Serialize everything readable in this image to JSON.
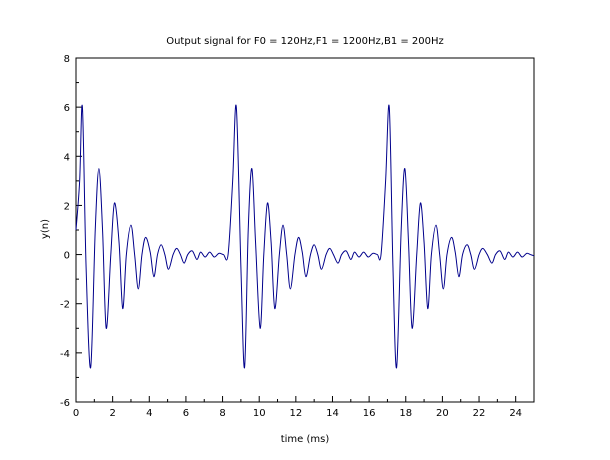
{
  "chart_data": {
    "type": "line",
    "title": "Output signal for F0 = 120Hz,F1 = 1200Hz,B1 = 200Hz",
    "xlabel": "time (ms)",
    "ylabel": "y(n)",
    "xlim": [
      0,
      25
    ],
    "ylim": [
      -6,
      8
    ],
    "xticks": [
      "0",
      "2",
      "4",
      "6",
      "8",
      "10",
      "12",
      "14",
      "16",
      "18",
      "20",
      "22",
      "24"
    ],
    "yticks": [
      "-6",
      "-4",
      "-2",
      "0",
      "2",
      "4",
      "6",
      "8"
    ],
    "grid": false,
    "colors": {
      "line": "#00008b",
      "axes": "#000000",
      "background": "#ffffff"
    },
    "series": [
      {
        "x": [
          0,
          0.2,
          0.35,
          0.55,
          0.8,
          1.05,
          1.25,
          1.45,
          1.65,
          1.9,
          2.1,
          2.35,
          2.55,
          2.75,
          3.0,
          3.2,
          3.4,
          3.6,
          3.8,
          4.05,
          4.25,
          4.45,
          4.65,
          4.85,
          5.05,
          5.3,
          5.5,
          5.7,
          5.9,
          6.1,
          6.35,
          6.6,
          6.8,
          7.05,
          7.3,
          7.55,
          7.8,
          8.05,
          8.3,
          8.55,
          8.75,
          9.0,
          9.2,
          9.4,
          9.6,
          9.8,
          10.05,
          10.25,
          10.45,
          10.65,
          10.85,
          11.1,
          11.3,
          11.5,
          11.7,
          11.95,
          12.15,
          12.35,
          12.55,
          12.8,
          13.0,
          13.2,
          13.4,
          13.65,
          13.85,
          14.05,
          14.3,
          14.5,
          14.75,
          15.0,
          15.2,
          15.45,
          15.7,
          15.95,
          16.2,
          16.45,
          16.65,
          16.9,
          17.1,
          17.3,
          17.5,
          17.75,
          17.95,
          18.15,
          18.35,
          18.6,
          18.8,
          19.0,
          19.2,
          19.4,
          19.65,
          19.85,
          20.05,
          20.25,
          20.5,
          20.7,
          20.9,
          21.1,
          21.35,
          21.55,
          21.75,
          22.0,
          22.2,
          22.45,
          22.7,
          22.9,
          23.15,
          23.4,
          23.6,
          23.85,
          24.1,
          24.35,
          24.6,
          24.8,
          25.0
        ],
        "y": [
          1.0,
          3.0,
          6.0,
          -0.5,
          -4.6,
          1.0,
          3.5,
          1.0,
          -3.0,
          0.0,
          2.1,
          0.5,
          -2.2,
          0.0,
          1.2,
          0.0,
          -1.4,
          0.0,
          0.7,
          0.1,
          -0.9,
          0.0,
          0.4,
          0.0,
          -0.6,
          0.0,
          0.25,
          0.0,
          -0.35,
          0.0,
          0.15,
          -0.2,
          0.1,
          -0.1,
          0.1,
          -0.1,
          0.05,
          0.0,
          0.0,
          3.0,
          6.0,
          -0.5,
          -4.6,
          1.0,
          3.5,
          0.5,
          -3.0,
          0.0,
          2.1,
          0.5,
          -2.2,
          0.0,
          1.2,
          0.0,
          -1.4,
          0.0,
          0.7,
          0.1,
          -0.9,
          0.0,
          0.4,
          0.0,
          -0.6,
          0.0,
          0.25,
          0.0,
          -0.35,
          0.0,
          0.15,
          -0.2,
          0.1,
          -0.1,
          0.1,
          -0.1,
          0.05,
          0.0,
          0.0,
          3.0,
          6.0,
          -0.5,
          -4.6,
          1.0,
          3.5,
          0.5,
          -3.0,
          0.0,
          2.1,
          0.5,
          -2.2,
          0.0,
          1.2,
          0.0,
          -1.4,
          0.0,
          0.7,
          0.1,
          -0.9,
          0.0,
          0.4,
          0.0,
          -0.6,
          0.0,
          0.25,
          0.0,
          -0.35,
          0.0,
          0.15,
          -0.2,
          0.1,
          -0.1,
          0.1,
          -0.1,
          0.05,
          0.0,
          -0.05
        ]
      }
    ]
  }
}
